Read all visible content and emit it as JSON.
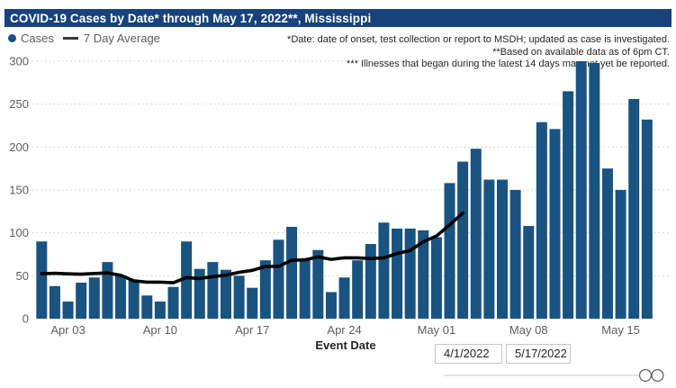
{
  "title": "COVID-19 Cases by Date* through May 17, 2022**, Mississippi",
  "legend": {
    "cases_label": "Cases",
    "avg_label": "7 Day Average"
  },
  "annotations": [
    "*Date: date of onset, test collection or report to MSDH; updated as case is investigated.",
    "**Based on available data as of 6pm CT.",
    "*** Illnesses that began during the latest 14 days may not yet be reported."
  ],
  "filters": {
    "start_date": "4/1/2022",
    "end_date": "5/17/2022"
  },
  "colors": {
    "title_bar_bg": "#17427B",
    "title_text": "#FFFFFF",
    "bar_fill": "#195380",
    "legend_dot": "#1B4F82",
    "avg_line": "#000000",
    "gridline": "#CCCAC8",
    "axis_text": "#605E5C",
    "annotation_text": "#252423",
    "input_border": "#C8C6C4",
    "slider_stroke": "#605E5C"
  },
  "chart_data": {
    "type": "bar",
    "title": "COVID-19 Cases by Date* through May 17, 2022**, Mississippi",
    "xlabel": "Event Date",
    "ylabel": "",
    "ylim": [
      0,
      300
    ],
    "y_ticks": [
      0,
      50,
      100,
      150,
      200,
      250,
      300
    ],
    "grid": "horizontal-dotted",
    "legend_position": "top-left",
    "x_tick_labels": [
      "Apr 03",
      "Apr 10",
      "Apr 17",
      "Apr 24",
      "May 01",
      "May 08",
      "May 15"
    ],
    "x_tick_day_index": [
      2,
      9,
      16,
      23,
      30,
      37,
      44
    ],
    "categories": [
      "Apr 1",
      "Apr 2",
      "Apr 3",
      "Apr 4",
      "Apr 5",
      "Apr 6",
      "Apr 7",
      "Apr 8",
      "Apr 9",
      "Apr 10",
      "Apr 11",
      "Apr 12",
      "Apr 13",
      "Apr 14",
      "Apr 15",
      "Apr 16",
      "Apr 17",
      "Apr 18",
      "Apr 19",
      "Apr 20",
      "Apr 21",
      "Apr 22",
      "Apr 23",
      "Apr 24",
      "Apr 25",
      "Apr 26",
      "Apr 27",
      "Apr 28",
      "Apr 29",
      "Apr 30",
      "May 1",
      "May 2",
      "May 3",
      "May 4",
      "May 5",
      "May 6",
      "May 7",
      "May 8",
      "May 9",
      "May 10",
      "May 11",
      "May 12",
      "May 13",
      "May 14",
      "May 15",
      "May 16",
      "May 17"
    ],
    "series": [
      {
        "name": "Cases",
        "render": "bar",
        "values": [
          90,
          38,
          20,
          42,
          48,
          66,
          50,
          45,
          27,
          20,
          37,
          90,
          58,
          66,
          57,
          50,
          36,
          68,
          92,
          107,
          70,
          80,
          31,
          48,
          68,
          87,
          112,
          105,
          105,
          103,
          95,
          158,
          183,
          198,
          162,
          162,
          150,
          108,
          229,
          221,
          265,
          300,
          298,
          175,
          150,
          256,
          232
        ]
      },
      {
        "name": "7 Day Average",
        "render": "line",
        "note": "average line stops at May 3, 14 days before report end",
        "values": [
          52.4,
          52.9,
          52.3,
          51.9,
          52.6,
          53.3,
          50.6,
          44.1,
          42.6,
          42.6,
          41.9,
          47.9,
          46.7,
          49.0,
          50.7,
          54.0,
          56.3,
          60.7,
          61.0,
          68.0,
          68.6,
          71.9,
          69.1,
          70.9,
          70.9,
          70.1,
          70.9,
          75.9,
          79.4,
          89.7,
          96.4,
          109.3,
          123.0,
          null,
          null,
          null,
          null,
          null,
          null,
          null,
          null,
          null,
          null,
          null,
          null,
          null,
          null
        ]
      }
    ]
  }
}
